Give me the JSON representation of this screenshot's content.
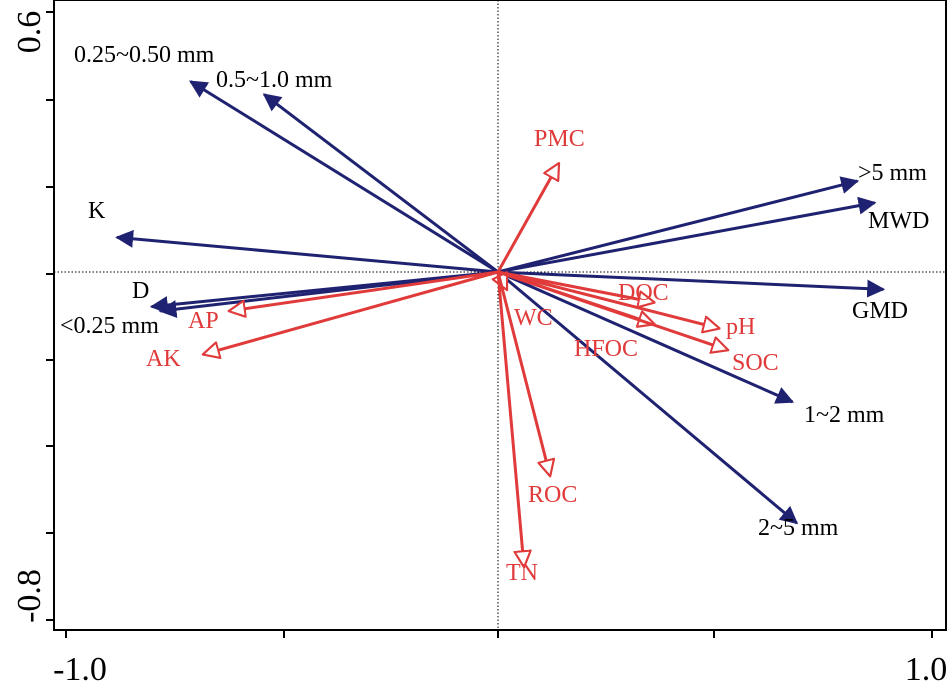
{
  "chart_data": {
    "type": "biplot",
    "title": "",
    "xlabel": "",
    "ylabel": "",
    "xlim": [
      -1.0,
      1.0
    ],
    "ylim": [
      -0.8,
      0.6
    ],
    "x_tick_labels": [
      "-1.0",
      "1.0"
    ],
    "y_tick_labels": [
      "0.6",
      "-0.8"
    ],
    "origin": [
      0.0,
      0.0
    ],
    "colors": {
      "response": "#1f2270",
      "explanatory": "#e03a3a"
    },
    "response_vectors": [
      {
        "name": "0.25~0.50 mm",
        "x": -0.71,
        "y": 0.44
      },
      {
        "name": "0.5~1.0 mm",
        "x": -0.54,
        "y": 0.41
      },
      {
        "name": ">5 mm",
        "x": 0.83,
        "y": 0.21
      },
      {
        "name": "MWD",
        "x": 0.87,
        "y": 0.16
      },
      {
        "name": "K",
        "x": -0.88,
        "y": 0.08
      },
      {
        "name": "D",
        "x": -0.8,
        "y": -0.08
      },
      {
        "name": "<0.25 mm",
        "x": -0.78,
        "y": -0.09
      },
      {
        "name": "GMD",
        "x": 0.89,
        "y": -0.04
      },
      {
        "name": "1~2 mm",
        "x": 0.68,
        "y": -0.3
      },
      {
        "name": "2~5 mm",
        "x": 0.69,
        "y": -0.58
      }
    ],
    "explanatory_vectors": [
      {
        "name": "PMC",
        "x": 0.14,
        "y": 0.25
      },
      {
        "name": "AP",
        "x": -0.62,
        "y": -0.09
      },
      {
        "name": "AK",
        "x": -0.68,
        "y": -0.19
      },
      {
        "name": "WC",
        "x": 0.02,
        "y": -0.04
      },
      {
        "name": "DOC",
        "x": 0.36,
        "y": -0.07
      },
      {
        "name": "HFOC",
        "x": 0.36,
        "y": -0.12
      },
      {
        "name": "pH",
        "x": 0.51,
        "y": -0.13
      },
      {
        "name": "SOC",
        "x": 0.53,
        "y": -0.18
      },
      {
        "name": "ROC",
        "x": 0.12,
        "y": -0.47
      },
      {
        "name": "TN",
        "x": 0.06,
        "y": -0.68
      }
    ]
  }
}
